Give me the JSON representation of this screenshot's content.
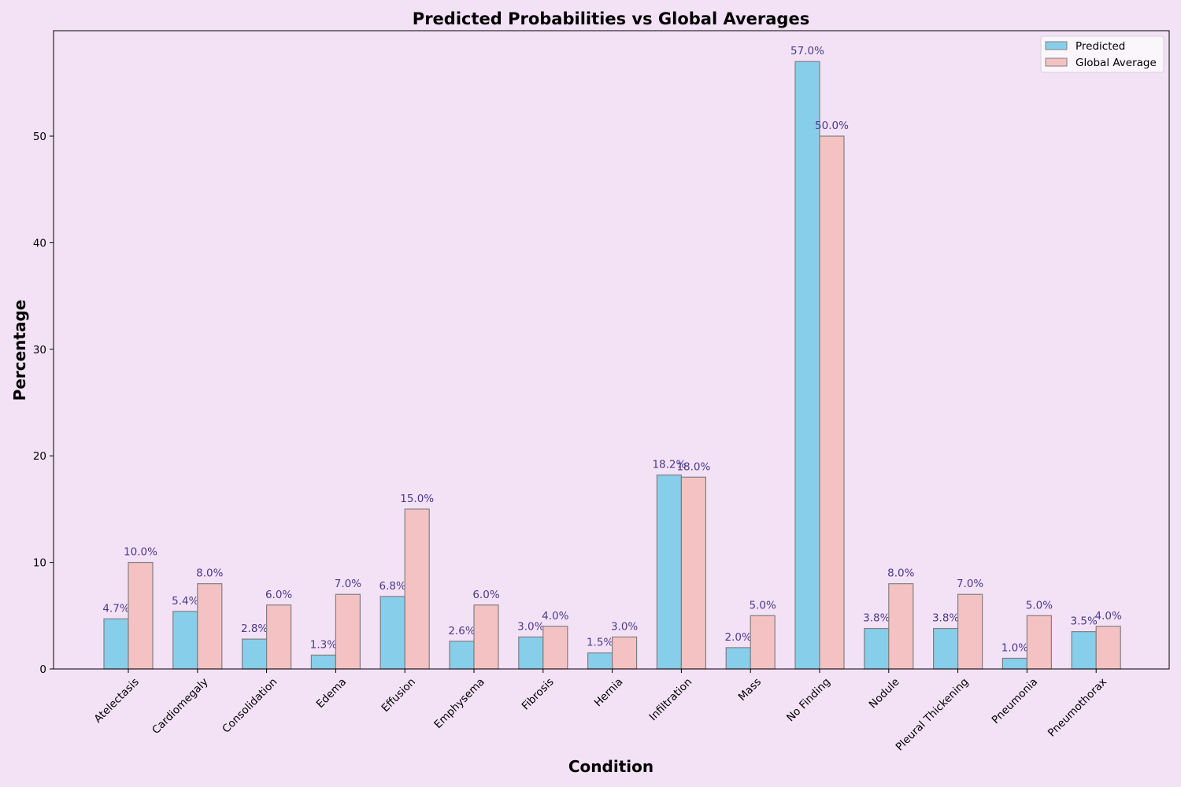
{
  "chart_data": {
    "type": "bar",
    "title": "Predicted Probabilities vs Global Averages",
    "xlabel": "Condition",
    "ylabel": "Percentage",
    "ylim": [
      0,
      60
    ],
    "yticks": [
      0,
      10,
      20,
      30,
      40,
      50
    ],
    "grid": false,
    "legend_position": "top-right",
    "categories": [
      "Atelectasis",
      "Cardiomegaly",
      "Consolidation",
      "Edema",
      "Effusion",
      "Emphysema",
      "Fibrosis",
      "Hernia",
      "Infiltration",
      "Mass",
      "No Finding",
      "Nodule",
      "Pleural Thickening",
      "Pneumonia",
      "Pneumothorax"
    ],
    "series": [
      {
        "name": "Predicted",
        "color": "#87ceeb",
        "values": [
          4.7,
          5.4,
          2.8,
          1.3,
          6.8,
          2.6,
          3.0,
          1.5,
          18.2,
          2.0,
          57.0,
          3.8,
          3.8,
          1.0,
          3.5
        ],
        "labels": [
          "4.7%",
          "5.4%",
          "2.8%",
          "1.3%",
          "6.8%",
          "2.6%",
          "3.0%",
          "1.5%",
          "18.2%",
          "2.0%",
          "57.0%",
          "3.8%",
          "3.8%",
          "1.0%",
          "3.5%"
        ]
      },
      {
        "name": "Global Average",
        "color": "#f4c2c2",
        "values": [
          10.0,
          8.0,
          6.0,
          7.0,
          15.0,
          6.0,
          4.0,
          3.0,
          18.0,
          5.0,
          50.0,
          8.0,
          7.0,
          5.0,
          4.0
        ],
        "labels": [
          "10.0%",
          "8.0%",
          "6.0%",
          "7.0%",
          "15.0%",
          "6.0%",
          "4.0%",
          "3.0%",
          "18.0%",
          "5.0%",
          "50.0%",
          "8.0%",
          "7.0%",
          "5.0%",
          "4.0%"
        ]
      }
    ],
    "colors": {
      "background": "#f3e1f6",
      "bar_edge": "#808080",
      "data_label": "#4b3a8c"
    }
  }
}
